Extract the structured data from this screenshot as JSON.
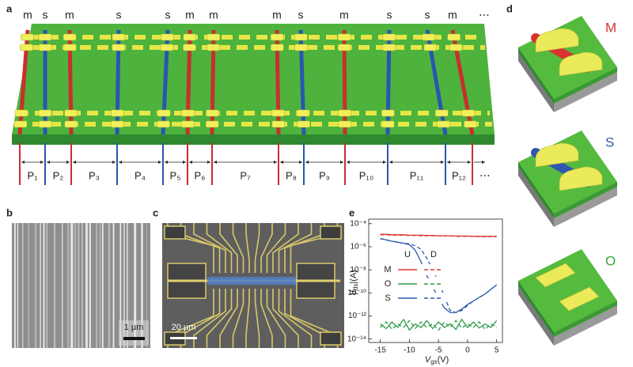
{
  "panel_labels": [
    "a",
    "b",
    "c",
    "d",
    "e"
  ],
  "panel_a": {
    "tubes": [
      {
        "label": "m",
        "color": "#c8302c"
      },
      {
        "label": "s",
        "color": "#2a56b0"
      },
      {
        "label": "m",
        "color": "#c8302c"
      },
      {
        "label": "s",
        "color": "#2a56b0"
      },
      {
        "label": "s",
        "color": "#2a56b0"
      },
      {
        "label": "m",
        "color": "#c8302c"
      },
      {
        "label": "m",
        "color": "#c8302c"
      },
      {
        "label": "m",
        "color": "#c8302c"
      },
      {
        "label": "s",
        "color": "#2a56b0"
      },
      {
        "label": "m",
        "color": "#c8302c"
      },
      {
        "label": "s",
        "color": "#2a56b0"
      },
      {
        "label": "s",
        "color": "#2a56b0"
      },
      {
        "label": "m",
        "color": "#c8302c"
      }
    ],
    "more_tubes": "⋯",
    "regions": [
      "P₁",
      "P₂",
      "P₃",
      "P₄",
      "P₅",
      "P₆",
      "P₇",
      "P₈",
      "P₉",
      "P₁₀",
      "P₁₁",
      "P₁₂"
    ],
    "more_regions": "⋯"
  },
  "panel_b": {
    "scale_bar": "1 µm"
  },
  "panel_c": {
    "scale_bar": "20 µm"
  },
  "panel_d": {
    "devices": [
      {
        "label": "M",
        "color": "#d8332e"
      },
      {
        "label": "S",
        "color": "#3156b0"
      },
      {
        "label": "O",
        "color": "#3aa53a"
      }
    ]
  },
  "chart_data": {
    "type": "line",
    "log_y": true,
    "grid": false,
    "xlabel": {
      "symbol": "V",
      "subscript": "gs",
      "unit": "(V)"
    },
    "ylabel": {
      "symbol": "|I",
      "subscript": "ds",
      "unit": "|(A)"
    },
    "xlim": [
      -17,
      6
    ],
    "xticks": [
      -15,
      -10,
      -5,
      0,
      5
    ],
    "ylim": [
      5e-15,
      0.00025
    ],
    "yticks": [
      {
        "value": 0.0001,
        "label": "10⁻⁴"
      },
      {
        "value": 1e-06,
        "label": "10⁻⁶"
      },
      {
        "value": 1e-08,
        "label": "10⁻⁸"
      },
      {
        "value": 1e-10,
        "label": "10⁻¹⁰"
      },
      {
        "value": 1e-12,
        "label": "10⁻¹²"
      },
      {
        "value": 1e-14,
        "label": "10⁻¹⁴"
      }
    ],
    "sweeps": [
      "U",
      "D"
    ],
    "x": [
      -15,
      -14,
      -13,
      -12,
      -11,
      -10,
      -9,
      -8,
      -7,
      -6,
      -5,
      -4,
      -3,
      -2,
      -1,
      0,
      1,
      2,
      3,
      4,
      5
    ],
    "series": [
      {
        "name": "M",
        "color": "#e03535",
        "up": [
          1.2e-05,
          1.2e-05,
          1.1e-05,
          1.1e-05,
          1.1e-05,
          1e-05,
          1e-05,
          1e-05,
          9.5e-06,
          9.5e-06,
          9e-06,
          9e-06,
          9e-06,
          8.5e-06,
          8.5e-06,
          8.5e-06,
          8e-06,
          8e-06,
          8e-06,
          8e-06,
          8e-06
        ],
        "down": [
          1.1e-05,
          1.1e-05,
          1e-05,
          1e-05,
          1e-05,
          9.5e-06,
          9.5e-06,
          9e-06,
          9e-06,
          9e-06,
          8.5e-06,
          8.5e-06,
          8.5e-06,
          8e-06,
          8e-06,
          8e-06,
          8e-06,
          7.5e-06,
          7.5e-06,
          7.5e-06,
          7.5e-06
        ]
      },
      {
        "name": "O",
        "color": "#2e9a4a",
        "up": [
          2e-13,
          8e-14,
          3e-13,
          1e-13,
          5e-13,
          6e-14,
          2e-13,
          1e-13,
          4e-13,
          8e-14,
          3e-13,
          1e-13,
          2e-13,
          7e-14,
          5e-13,
          1e-13,
          3e-13,
          9e-14,
          2e-13,
          1e-13,
          4e-13
        ],
        "down": [
          1e-13,
          3e-13,
          7e-14,
          2e-13,
          1e-13,
          4e-13,
          8e-14,
          3e-13,
          1e-13,
          2e-13,
          6e-14,
          3e-13,
          1e-13,
          4e-13,
          9e-14,
          2e-13,
          1e-13,
          3e-13,
          7e-14,
          2e-13,
          1e-13
        ]
      },
      {
        "name": "S",
        "color": "#2f5aa8",
        "up": [
          5e-06,
          4e-06,
          3e-06,
          2.5e-06,
          2e-06,
          1.5e-06,
          5e-07,
          5e-08,
          3e-09,
          3e-10,
          4e-11,
          5e-12,
          2e-12,
          2e-12,
          4e-12,
          1e-11,
          2e-11,
          4e-11,
          8e-11,
          2e-10,
          5e-10
        ],
        "down": [
          5e-06,
          4e-06,
          3e-06,
          2.5e-06,
          2e-06,
          1.8e-06,
          1.2e-06,
          6e-07,
          1e-07,
          1e-08,
          1e-09,
          5e-11,
          3e-12,
          2e-12,
          3e-12,
          8e-12,
          2e-11,
          4e-11,
          8e-11,
          2e-10,
          5e-10
        ]
      }
    ]
  }
}
